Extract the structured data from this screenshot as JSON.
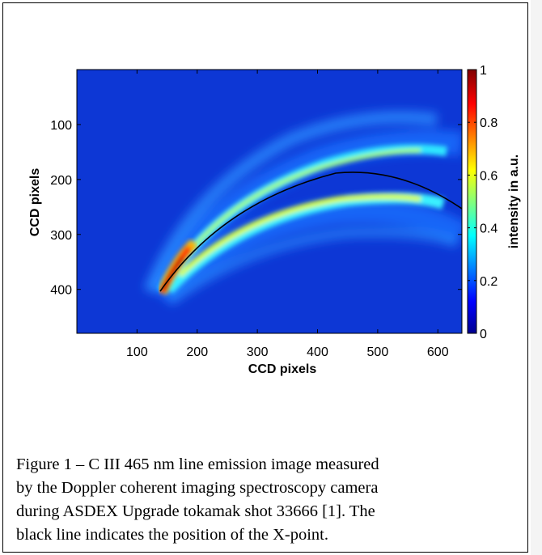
{
  "chart_data": {
    "type": "heatmap",
    "title": "",
    "xlabel": "CCD pixels",
    "ylabel": "CCD pixels",
    "xlim": [
      0,
      640
    ],
    "ylim": [
      480,
      0
    ],
    "x_ticks": [
      "100",
      "200",
      "300",
      "400",
      "500",
      "600"
    ],
    "y_ticks": [
      "100",
      "200",
      "300",
      "400"
    ],
    "colorbar": {
      "label": "intensity in a.u.",
      "range": [
        0,
        1
      ],
      "ticks": [
        "0",
        "0.2",
        "0.4",
        "0.6",
        "0.8",
        "1"
      ],
      "colormap": "jet"
    },
    "xpoint_line_color": "#000000"
  },
  "caption": {
    "lines": [
      "Figure 1 – C III 465 nm line emission image measured",
      "by the Doppler coherent imaging spectroscopy camera",
      "during ASDEX Upgrade tokamak shot 33666 [1]. The",
      "black line indicates the position of the X-point."
    ]
  }
}
